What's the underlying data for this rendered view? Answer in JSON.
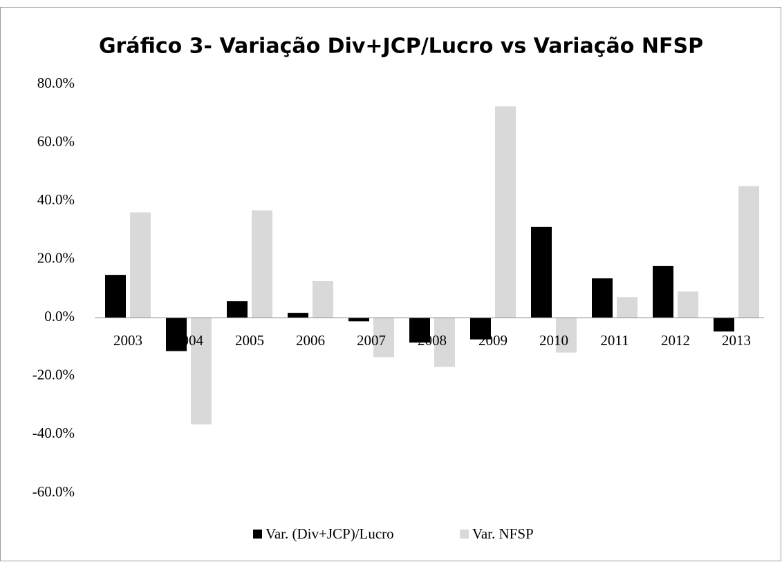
{
  "chart_data": {
    "type": "bar",
    "title": "Gráfico 3- Variação Div+JCP/Lucro vs Variação NFSP",
    "categories": [
      "2003",
      "2004",
      "2005",
      "2006",
      "2007",
      "2008",
      "2009",
      "2010",
      "2011",
      "2012",
      "2013"
    ],
    "series": [
      {
        "name": "Var. (Div+JCP)/Lucro",
        "color": "#000000",
        "values": [
          14.7,
          -11.4,
          5.7,
          1.7,
          -1.2,
          -8.5,
          -7.4,
          31.1,
          13.5,
          17.8,
          -4.7
        ]
      },
      {
        "name": "Var. NFSP",
        "color": "#d9d9d9",
        "values": [
          36.1,
          -36.5,
          36.8,
          12.6,
          -13.5,
          -16.8,
          72.4,
          -11.9,
          7.1,
          9.0,
          45.1
        ]
      }
    ],
    "ylim": [
      -60,
      80
    ],
    "yticks": [
      {
        "value": -60,
        "label": "-60.0%"
      },
      {
        "value": -40,
        "label": "-40.0%"
      },
      {
        "value": -20,
        "label": "-20.0%"
      },
      {
        "value": 0,
        "label": "0.0%"
      },
      {
        "value": 20,
        "label": "20.0%"
      },
      {
        "value": 40,
        "label": "40.0%"
      },
      {
        "value": 60,
        "label": "60.0%"
      },
      {
        "value": 80,
        "label": "80.0%"
      }
    ],
    "grid": false,
    "legend": "bottom"
  }
}
